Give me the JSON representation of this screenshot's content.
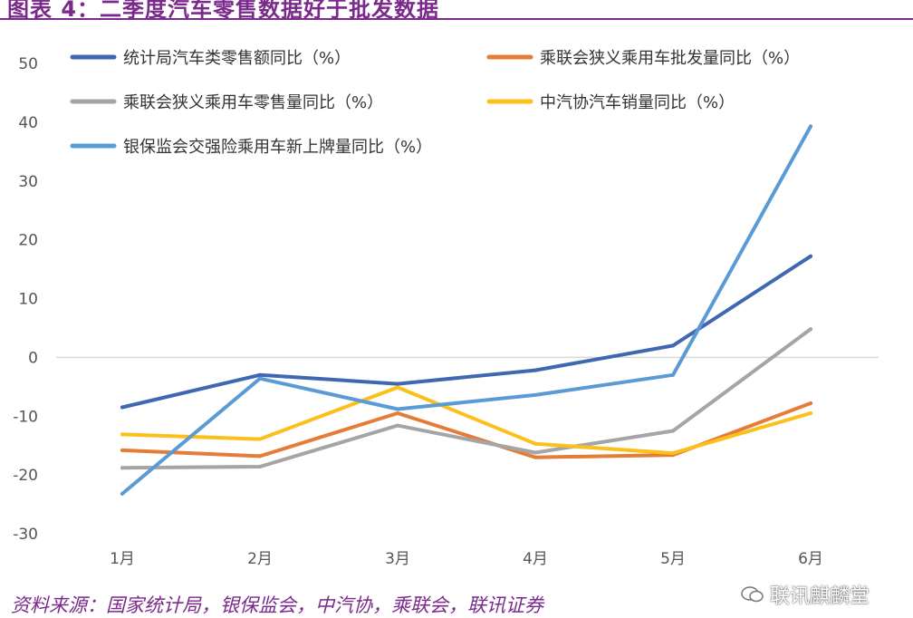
{
  "title": "图表 4：二季度汽车零售数据好于批发数据",
  "source": "资料来源：国家统计局，银保监会，中汽协，乘联会，联讯证券",
  "watermark": "联讯麒麟堂",
  "chart_data": {
    "type": "line",
    "categories": [
      "1月",
      "2月",
      "3月",
      "4月",
      "5月",
      "6月"
    ],
    "ylim": [
      -30,
      50
    ],
    "yticks": [
      50,
      40,
      30,
      20,
      10,
      0,
      -10,
      -20,
      -30
    ],
    "grid": false,
    "legend_position": "top",
    "series": [
      {
        "name": "统计局汽车类零售额同比（%）",
        "color": "#4068b2",
        "values": [
          -8.5,
          -3.0,
          -4.5,
          -2.2,
          2.0,
          17.2
        ]
      },
      {
        "name": "乘联会狭义乘用车批发量同比（%）",
        "color": "#e57c37",
        "values": [
          -15.8,
          -16.8,
          -9.5,
          -17.0,
          -16.6,
          -7.8
        ]
      },
      {
        "name": "乘联会狭义乘用车零售量同比（%）",
        "color": "#a5a5a5",
        "values": [
          -18.8,
          -18.6,
          -11.6,
          -16.2,
          -12.5,
          4.8
        ]
      },
      {
        "name": "中汽协汽车销量同比（%）",
        "color": "#fdbf1a",
        "values": [
          -13.1,
          -13.9,
          -5.1,
          -14.7,
          -16.3,
          -9.5
        ]
      },
      {
        "name": "银保监会交强险乘用车新上牌量同比（%）",
        "color": "#5b9bd5",
        "values": [
          -23.2,
          -3.6,
          -8.8,
          -6.4,
          -3.0,
          39.3
        ]
      }
    ]
  }
}
